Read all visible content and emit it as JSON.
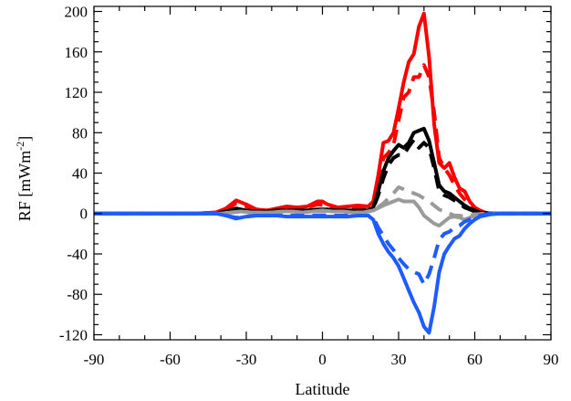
{
  "chart_data": {
    "type": "line",
    "title": "",
    "xlabel": "Latitude",
    "ylabel_prefix": "RF [mWm",
    "ylabel_sup": "-2",
    "ylabel_suffix": "]",
    "xlim": [
      -90,
      90
    ],
    "ylim": [
      -125,
      205
    ],
    "xticks": [
      -90,
      -60,
      -30,
      0,
      30,
      60,
      90
    ],
    "yticks": [
      -120,
      -80,
      -40,
      0,
      40,
      80,
      120,
      160,
      200
    ],
    "xtick_labels": [
      "-90",
      "-60",
      "-30",
      "0",
      "30",
      "60",
      "90"
    ],
    "ytick_labels": [
      "-120",
      "-80",
      "-40",
      "0",
      "40",
      "80",
      "120",
      "160",
      "200"
    ],
    "grid": false,
    "legend": "none",
    "series": [
      {
        "color": "#ff0000",
        "dash": false,
        "x": [
          -90,
          -70,
          -50,
          -42,
          -38,
          -34,
          -30,
          -26,
          -22,
          -18,
          -14,
          -10,
          -6,
          -2,
          0,
          2,
          6,
          10,
          14,
          18,
          20,
          22,
          24,
          26,
          28,
          30,
          32,
          34,
          36,
          38,
          40,
          42,
          44,
          46,
          48,
          50,
          52,
          54,
          56,
          58,
          60,
          62,
          64,
          66,
          70,
          90
        ],
        "y": [
          0,
          0,
          0,
          1,
          5,
          13,
          9,
          4,
          3,
          5,
          7,
          6,
          7,
          12,
          12,
          9,
          6,
          7,
          8,
          7,
          12,
          38,
          70,
          72,
          80,
          104,
          130,
          150,
          158,
          185,
          198,
          155,
          88,
          50,
          45,
          50,
          36,
          25,
          22,
          12,
          6,
          3,
          1,
          0,
          0,
          0
        ]
      },
      {
        "color": "#ff0000",
        "dash": true,
        "x": [
          -90,
          -50,
          -42,
          -38,
          -34,
          -30,
          -26,
          -22,
          -18,
          -14,
          -10,
          -6,
          -2,
          2,
          6,
          10,
          14,
          18,
          20,
          22,
          24,
          26,
          28,
          30,
          32,
          34,
          36,
          38,
          40,
          42,
          44,
          46,
          48,
          50,
          52,
          54,
          56,
          58,
          60,
          62,
          66,
          90
        ],
        "y": [
          0,
          0,
          1,
          4,
          10,
          7,
          3,
          3,
          4,
          6,
          5,
          6,
          9,
          8,
          5,
          6,
          6,
          6,
          10,
          30,
          55,
          60,
          68,
          92,
          115,
          120,
          135,
          135,
          147,
          135,
          100,
          55,
          45,
          38,
          28,
          20,
          14,
          8,
          4,
          2,
          0,
          0
        ]
      },
      {
        "color": "#000000",
        "dash": false,
        "x": [
          -90,
          -50,
          -42,
          -38,
          -34,
          -30,
          -26,
          -22,
          -18,
          -14,
          -10,
          -6,
          -2,
          2,
          6,
          10,
          14,
          18,
          20,
          22,
          24,
          26,
          28,
          30,
          32,
          34,
          36,
          38,
          40,
          42,
          44,
          46,
          48,
          50,
          52,
          54,
          56,
          58,
          60,
          62,
          66,
          90
        ],
        "y": [
          0,
          0,
          0,
          2,
          5,
          3,
          2,
          2,
          3,
          3,
          3,
          3,
          4,
          4,
          3,
          3,
          3,
          3,
          6,
          22,
          42,
          55,
          62,
          68,
          65,
          70,
          80,
          82,
          84,
          72,
          50,
          28,
          22,
          20,
          16,
          12,
          8,
          5,
          3,
          1,
          0,
          0
        ]
      },
      {
        "color": "#000000",
        "dash": true,
        "x": [
          -90,
          -50,
          -42,
          -38,
          -34,
          -30,
          -26,
          -22,
          -18,
          -14,
          -10,
          -6,
          -2,
          2,
          6,
          10,
          14,
          18,
          20,
          22,
          24,
          26,
          28,
          30,
          32,
          34,
          36,
          38,
          40,
          42,
          44,
          46,
          48,
          50,
          52,
          54,
          56,
          58,
          60,
          62,
          66,
          90
        ],
        "y": [
          0,
          0,
          0,
          2,
          4,
          3,
          2,
          2,
          3,
          3,
          3,
          3,
          3,
          3,
          3,
          3,
          3,
          3,
          5,
          18,
          35,
          48,
          55,
          58,
          58,
          66,
          73,
          65,
          70,
          65,
          45,
          22,
          18,
          16,
          13,
          10,
          6,
          4,
          2,
          1,
          0,
          0
        ]
      },
      {
        "color": "#9a9a9a",
        "dash": false,
        "x": [
          -90,
          -40,
          -36,
          -32,
          -28,
          -24,
          -20,
          -16,
          -12,
          -8,
          -4,
          0,
          4,
          8,
          12,
          16,
          20,
          24,
          28,
          30,
          32,
          34,
          36,
          38,
          40,
          42,
          44,
          46,
          48,
          50,
          52,
          54,
          56,
          58,
          60,
          64,
          70,
          90
        ],
        "y": [
          0,
          0,
          1,
          2,
          1,
          1,
          1,
          2,
          2,
          1,
          2,
          3,
          2,
          2,
          1,
          1,
          3,
          8,
          12,
          14,
          12,
          12,
          12,
          6,
          -2,
          -6,
          -10,
          -12,
          -8,
          -4,
          -3,
          -4,
          -6,
          -4,
          -2,
          -1,
          0,
          0
        ]
      },
      {
        "color": "#9a9a9a",
        "dash": true,
        "x": [
          -90,
          -40,
          -36,
          -32,
          -28,
          -24,
          -20,
          -16,
          -12,
          -8,
          -4,
          0,
          4,
          8,
          12,
          16,
          20,
          24,
          28,
          30,
          32,
          34,
          36,
          38,
          40,
          42,
          44,
          46,
          48,
          50,
          52,
          54,
          56,
          58,
          60,
          64,
          70,
          90
        ],
        "y": [
          0,
          0,
          1,
          2,
          1,
          1,
          1,
          1,
          2,
          1,
          2,
          2,
          2,
          2,
          1,
          1,
          3,
          10,
          20,
          26,
          24,
          22,
          20,
          18,
          15,
          12,
          8,
          4,
          2,
          0,
          -2,
          -2,
          -3,
          -2,
          -1,
          0,
          0,
          0
        ]
      },
      {
        "color": "#1f5cff",
        "dash": false,
        "x": [
          -90,
          -42,
          -38,
          -34,
          -30,
          -26,
          -22,
          -18,
          -14,
          -10,
          -6,
          -2,
          2,
          6,
          10,
          14,
          18,
          20,
          22,
          24,
          26,
          28,
          30,
          32,
          34,
          36,
          38,
          40,
          42,
          44,
          46,
          48,
          50,
          52,
          54,
          56,
          58,
          60,
          62,
          66,
          70,
          90
        ],
        "y": [
          0,
          0,
          -2,
          -5,
          -3,
          -2,
          -2,
          -2,
          -3,
          -3,
          -3,
          -3,
          -3,
          -3,
          -3,
          -2,
          -2,
          -6,
          -20,
          -30,
          -38,
          -44,
          -52,
          -64,
          -76,
          -88,
          -98,
          -112,
          -118,
          -92,
          -58,
          -40,
          -32,
          -25,
          -22,
          -15,
          -10,
          -6,
          -3,
          -1,
          0,
          0
        ]
      },
      {
        "color": "#1f5cff",
        "dash": true,
        "x": [
          -90,
          -42,
          -38,
          -34,
          -30,
          -26,
          -22,
          -18,
          -14,
          -10,
          -6,
          -2,
          2,
          6,
          10,
          14,
          18,
          20,
          22,
          24,
          26,
          28,
          30,
          32,
          34,
          36,
          38,
          40,
          42,
          44,
          46,
          48,
          50,
          52,
          54,
          56,
          58,
          60,
          62,
          66,
          90
        ],
        "y": [
          0,
          0,
          -2,
          -4,
          -3,
          -2,
          -2,
          -2,
          -2,
          -2,
          -2,
          -2,
          -2,
          -2,
          -2,
          -2,
          -2,
          -4,
          -14,
          -22,
          -30,
          -36,
          -44,
          -50,
          -55,
          -58,
          -60,
          -70,
          -60,
          -44,
          -26,
          -20,
          -18,
          -14,
          -12,
          -8,
          -6,
          -4,
          -2,
          0,
          0
        ]
      }
    ]
  }
}
